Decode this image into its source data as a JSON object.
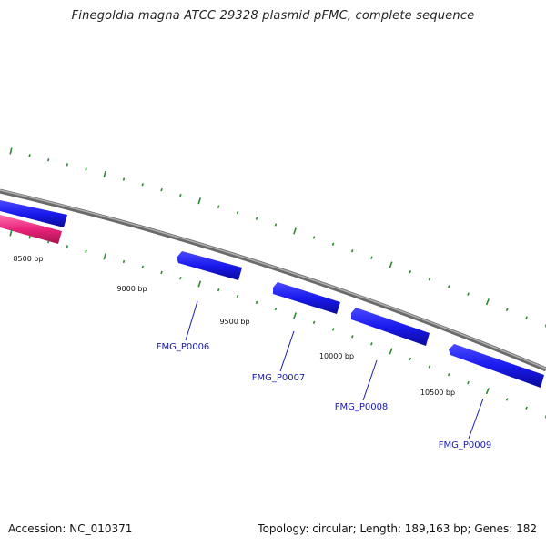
{
  "title": "Finegoldia magna ATCC 29328 plasmid pFMC, complete sequence",
  "footer": {
    "accession": "Accession: NC_010371",
    "summary": "Topology: circular; Length: 189,163 bp; Genes: 182"
  },
  "colors": {
    "backbone": "#8a8a8a",
    "forward_gene": "#1a1aee",
    "reverse_gene": "#e8237a",
    "tick": "#2a8a2a",
    "gene_label": "#1a1aaa",
    "ruler_label": "#111111"
  },
  "ruler_labels": [
    "8500 bp",
    "9000 bp",
    "9500 bp",
    "10000 bp",
    "10500 bp"
  ],
  "genes": [
    {
      "locus_tag": "FMG_P0006"
    },
    {
      "locus_tag": "FMG_P0007"
    },
    {
      "locus_tag": "FMG_P0008"
    },
    {
      "locus_tag": "FMG_P0009"
    }
  ]
}
